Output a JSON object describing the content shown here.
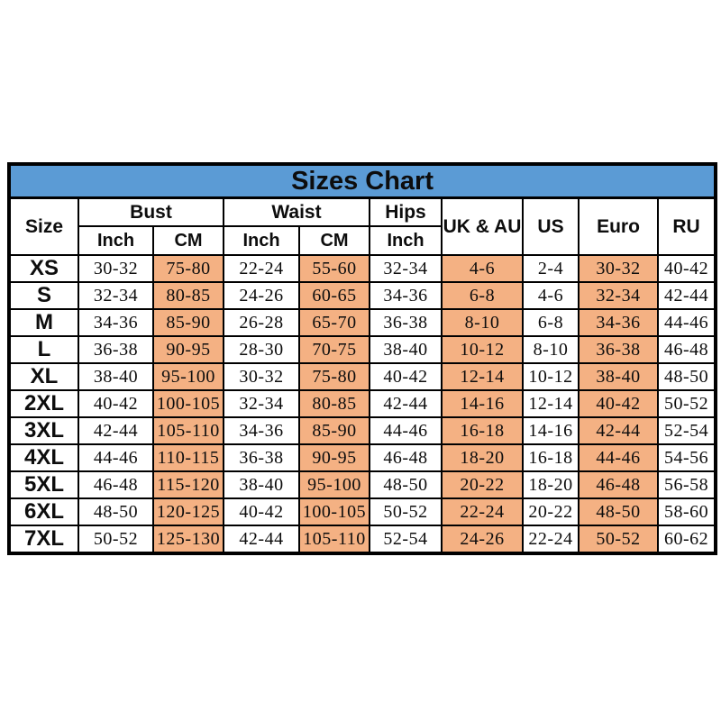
{
  "page": {
    "background": "#ffffff"
  },
  "chart": {
    "title": "Sizes Chart",
    "colors": {
      "title_bg": "#5B9BD5",
      "highlight_bg": "#F4B183",
      "cell_bg": "#FFFFFF",
      "border": "#000000",
      "text": "#0D0D0D"
    },
    "header": {
      "size_label": "Size",
      "bust_label": "Bust",
      "waist_label": "Waist",
      "hips_label": "Hips",
      "inch_label": "Inch",
      "cm_label": "CM",
      "uk_au_label": "UK & AU",
      "us_label": "US",
      "euro_label": "Euro",
      "ru_label": "RU"
    }
  },
  "chart_data": {
    "type": "table",
    "title": "Sizes Chart",
    "columns": [
      "Size",
      "Bust Inch",
      "Bust CM",
      "Waist Inch",
      "Waist CM",
      "Hips Inch",
      "UK & AU",
      "US",
      "Euro",
      "RU"
    ],
    "highlighted_columns": [
      "Bust CM",
      "Waist CM",
      "UK & AU",
      "Euro"
    ],
    "rows": [
      {
        "size": "XS",
        "cells": [
          "30-32",
          "75-80",
          "22-24",
          "55-60",
          "32-34",
          "4-6",
          "2-4",
          "30-32",
          "40-42"
        ]
      },
      {
        "size": "S",
        "cells": [
          "32-34",
          "80-85",
          "24-26",
          "60-65",
          "34-36",
          "6-8",
          "4-6",
          "32-34",
          "42-44"
        ]
      },
      {
        "size": "M",
        "cells": [
          "34-36",
          "85-90",
          "26-28",
          "65-70",
          "36-38",
          "8-10",
          "6-8",
          "34-36",
          "44-46"
        ]
      },
      {
        "size": "L",
        "cells": [
          "36-38",
          "90-95",
          "28-30",
          "70-75",
          "38-40",
          "10-12",
          "8-10",
          "36-38",
          "46-48"
        ]
      },
      {
        "size": "XL",
        "cells": [
          "38-40",
          "95-100",
          "30-32",
          "75-80",
          "40-42",
          "12-14",
          "10-12",
          "38-40",
          "48-50"
        ]
      },
      {
        "size": "2XL",
        "cells": [
          "40-42",
          "100-105",
          "32-34",
          "80-85",
          "42-44",
          "14-16",
          "12-14",
          "40-42",
          "50-52"
        ]
      },
      {
        "size": "3XL",
        "cells": [
          "42-44",
          "105-110",
          "34-36",
          "85-90",
          "44-46",
          "16-18",
          "14-16",
          "42-44",
          "52-54"
        ]
      },
      {
        "size": "4XL",
        "cells": [
          "44-46",
          "110-115",
          "36-38",
          "90-95",
          "46-48",
          "18-20",
          "16-18",
          "44-46",
          "54-56"
        ]
      },
      {
        "size": "5XL",
        "cells": [
          "46-48",
          "115-120",
          "38-40",
          "95-100",
          "48-50",
          "20-22",
          "18-20",
          "46-48",
          "56-58"
        ]
      },
      {
        "size": "6XL",
        "cells": [
          "48-50",
          "120-125",
          "40-42",
          "100-105",
          "50-52",
          "22-24",
          "20-22",
          "48-50",
          "58-60"
        ]
      },
      {
        "size": "7XL",
        "cells": [
          "50-52",
          "125-130",
          "42-44",
          "105-110",
          "52-54",
          "24-26",
          "22-24",
          "50-52",
          "60-62"
        ]
      }
    ]
  }
}
